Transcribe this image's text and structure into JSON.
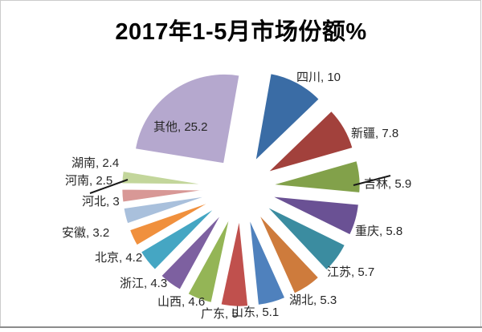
{
  "frame": {
    "background": "#ffffff",
    "border_color": "#cbcbcb",
    "bottom_rule_color": "#8c8c8c"
  },
  "chart_data": {
    "type": "pie",
    "title": "2017年1-5月市场份额%",
    "unit": "%",
    "legend": "none",
    "style": "exploded-pie",
    "start_angle": "top, clockwise",
    "label_format": "name, value",
    "slices": [
      {
        "name": "四川",
        "value": 10,
        "label": "四川, 10",
        "color": "#3A6CA5"
      },
      {
        "name": "新疆",
        "value": 7.8,
        "label": "新疆, 7.8",
        "color": "#A2413C"
      },
      {
        "name": "吉林",
        "value": 5.9,
        "label": "吉林, 5.9",
        "color": "#82A14A",
        "leader_line": true
      },
      {
        "name": "重庆",
        "value": 5.8,
        "label": "重庆, 5.8",
        "color": "#6A5194"
      },
      {
        "name": "江苏",
        "value": 5.7,
        "label": "江苏, 5.7",
        "color": "#3B8CA0"
      },
      {
        "name": "湖北",
        "value": 5.3,
        "label": "湖北, 5.3",
        "color": "#CE7B3C"
      },
      {
        "name": "山东",
        "value": 5.1,
        "label": "山东, 5.1",
        "color": "#4F81BD"
      },
      {
        "name": "广东",
        "value": 5,
        "label": "广东, 5",
        "color": "#C0504D"
      },
      {
        "name": "山西",
        "value": 4.6,
        "label": "山西, 4.6",
        "color": "#94B556"
      },
      {
        "name": "浙江",
        "value": 4.3,
        "label": "浙江, 4.3",
        "color": "#7D60A0"
      },
      {
        "name": "北京",
        "value": 4.2,
        "label": "北京, 4.2",
        "color": "#45A6C3"
      },
      {
        "name": "安徽",
        "value": 3.2,
        "label": "安徽, 3.2",
        "color": "#F0903D"
      },
      {
        "name": "河北",
        "value": 3,
        "label": "河北, 3",
        "color": "#A9C0DC"
      },
      {
        "name": "河南",
        "value": 2.5,
        "label": "河南, 2.5",
        "color": "#D89896",
        "leader_line": true
      },
      {
        "name": "湖南",
        "value": 2.4,
        "label": "湖南, 2.4",
        "color": "#C3D69B"
      },
      {
        "name": "其他",
        "value": 25.2,
        "label": "其他, 25.2",
        "color": "#B5A8CE"
      }
    ]
  }
}
